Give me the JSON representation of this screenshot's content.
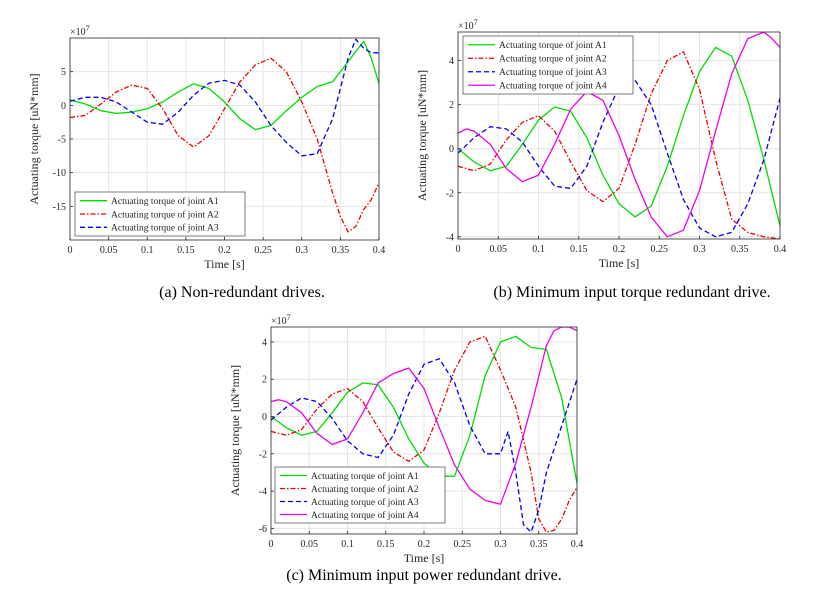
{
  "chart_data": [
    {
      "type": "line",
      "caption": "(a) Non-redundant drives.",
      "xlabel": "Time [s]",
      "ylabel": "Actuating torque [uN*mm]",
      "multiplier": "×10",
      "multiplier_exp": "7",
      "xlim": [
        0,
        0.4
      ],
      "ylim": [
        -20,
        10
      ],
      "xticks": [
        0,
        0.05,
        0.1,
        0.15,
        0.2,
        0.25,
        0.3,
        0.35,
        0.4
      ],
      "yticks": [
        -15,
        -10,
        -5,
        0,
        5
      ],
      "grid": true,
      "legend_position": "bottom-left",
      "series": [
        {
          "name": "Actuating torque of joint A1",
          "color": "#00dd00",
          "style": "solid",
          "x": [
            0,
            0.02,
            0.04,
            0.06,
            0.08,
            0.1,
            0.12,
            0.14,
            0.16,
            0.18,
            0.2,
            0.22,
            0.24,
            0.26,
            0.28,
            0.3,
            0.32,
            0.34,
            0.36,
            0.37,
            0.38,
            0.39,
            0.4
          ],
          "y": [
            0.8,
            0.2,
            -0.8,
            -1.2,
            -1.0,
            -0.5,
            0.5,
            2,
            3.2,
            2.5,
            0.5,
            -2,
            -3.6,
            -3,
            -0.8,
            1.2,
            2.8,
            3.5,
            6.5,
            8,
            9.5,
            7,
            3.2
          ]
        },
        {
          "name": "Actuating torque of joint A2",
          "color": "#ee0000",
          "style": "dashdot",
          "x": [
            0,
            0.02,
            0.04,
            0.06,
            0.08,
            0.1,
            0.12,
            0.14,
            0.16,
            0.18,
            0.2,
            0.22,
            0.24,
            0.26,
            0.28,
            0.3,
            0.32,
            0.34,
            0.35,
            0.36,
            0.37,
            0.38,
            0.39,
            0.4
          ],
          "y": [
            -1.8,
            -1.5,
            0.2,
            2,
            3,
            2.5,
            -0.5,
            -4.5,
            -6.2,
            -4.5,
            -0.5,
            3.5,
            6,
            7,
            5,
            0.5,
            -5,
            -13,
            -16.5,
            -18.8,
            -18,
            -15.5,
            -14,
            -11.5
          ]
        },
        {
          "name": "Actuating torque of joint A3",
          "color": "#0000ee",
          "style": "dash",
          "x": [
            0,
            0.02,
            0.04,
            0.06,
            0.08,
            0.1,
            0.12,
            0.14,
            0.16,
            0.18,
            0.2,
            0.22,
            0.24,
            0.26,
            0.28,
            0.3,
            0.32,
            0.34,
            0.36,
            0.37,
            0.38,
            0.39,
            0.4
          ],
          "y": [
            0.6,
            1.2,
            1.2,
            0.5,
            -1,
            -2.5,
            -2.8,
            -1,
            1.5,
            3.3,
            3.7,
            3,
            0.5,
            -3,
            -5.5,
            -7.5,
            -7.2,
            -2,
            7,
            9.8,
            8.5,
            7.8,
            7.8
          ]
        }
      ]
    },
    {
      "type": "line",
      "caption": "(b) Minimum input torque redundant drive.",
      "xlabel": "Time [s]",
      "ylabel": "Actuating torque [uN*mm]",
      "multiplier": "×10",
      "multiplier_exp": "7",
      "xlim": [
        0,
        0.4
      ],
      "ylim": [
        -4.1,
        5.3
      ],
      "xticks": [
        0,
        0.05,
        0.1,
        0.15,
        0.2,
        0.25,
        0.3,
        0.35,
        0.4
      ],
      "yticks": [
        -4,
        -2,
        0,
        2,
        4
      ],
      "grid": true,
      "legend_position": "top-left",
      "series": [
        {
          "name": "Actuating torque of joint A1",
          "color": "#00dd00",
          "style": "solid",
          "x": [
            0,
            0.02,
            0.04,
            0.06,
            0.08,
            0.1,
            0.12,
            0.14,
            0.16,
            0.18,
            0.2,
            0.22,
            0.24,
            0.26,
            0.28,
            0.3,
            0.32,
            0.34,
            0.36,
            0.38,
            0.4
          ],
          "y": [
            0,
            -0.6,
            -1,
            -0.8,
            0.2,
            1.3,
            1.9,
            1.7,
            0.5,
            -1.2,
            -2.5,
            -3.1,
            -2.6,
            -0.8,
            1.5,
            3.5,
            4.6,
            4.2,
            2.2,
            -0.5,
            -3.5
          ]
        },
        {
          "name": "Actuating torque of joint A2",
          "color": "#ee0000",
          "style": "dashdot",
          "x": [
            0,
            0.02,
            0.04,
            0.06,
            0.08,
            0.1,
            0.12,
            0.14,
            0.16,
            0.18,
            0.2,
            0.22,
            0.24,
            0.26,
            0.28,
            0.3,
            0.32,
            0.34,
            0.36,
            0.38,
            0.4
          ],
          "y": [
            -0.8,
            -1,
            -0.7,
            0.4,
            1.2,
            1.5,
            0.8,
            -0.6,
            -1.9,
            -2.4,
            -1.8,
            0.2,
            2.5,
            4,
            4.4,
            2.7,
            -0.5,
            -3.2,
            -3.8,
            -4,
            -4.1
          ]
        },
        {
          "name": "Actuating torque of joint A3",
          "color": "#0000ee",
          "style": "dash",
          "x": [
            0,
            0.02,
            0.04,
            0.06,
            0.08,
            0.1,
            0.12,
            0.14,
            0.16,
            0.18,
            0.2,
            0.22,
            0.24,
            0.26,
            0.28,
            0.3,
            0.32,
            0.34,
            0.36,
            0.38,
            0.4
          ],
          "y": [
            -0.2,
            0.5,
            1,
            0.9,
            0.3,
            -0.8,
            -1.7,
            -1.8,
            -0.8,
            1.2,
            2.8,
            3.1,
            2,
            -0.2,
            -2.3,
            -3.6,
            -4,
            -3.8,
            -2.5,
            -0.5,
            2.3
          ]
        },
        {
          "name": "Actuating torque of joint A4",
          "color": "#ee00ee",
          "style": "solid",
          "x": [
            0,
            0.01,
            0.02,
            0.04,
            0.06,
            0.08,
            0.1,
            0.12,
            0.14,
            0.16,
            0.18,
            0.2,
            0.22,
            0.24,
            0.26,
            0.28,
            0.3,
            0.32,
            0.34,
            0.36,
            0.38,
            0.39,
            0.4
          ],
          "y": [
            0.7,
            0.9,
            0.8,
            0.2,
            -0.9,
            -1.5,
            -1.2,
            0.2,
            1.8,
            2.6,
            2.2,
            0.6,
            -1.4,
            -3.1,
            -4,
            -3.7,
            -1.9,
            0.8,
            3.4,
            5,
            5.3,
            5,
            4.6
          ]
        }
      ]
    },
    {
      "type": "line",
      "caption": "(c) Minimum input power redundant drive.",
      "xlabel": "Time [s]",
      "ylabel": "Actuating torque [uN*mm]",
      "multiplier": "×10",
      "multiplier_exp": "7",
      "xlim": [
        0,
        0.4
      ],
      "ylim": [
        -6.3,
        4.8
      ],
      "xticks": [
        0,
        0.05,
        0.1,
        0.15,
        0.2,
        0.25,
        0.3,
        0.35,
        0.4
      ],
      "yticks": [
        -6,
        -4,
        -2,
        0,
        2,
        4
      ],
      "grid": true,
      "legend_position": "bottom-left",
      "series": [
        {
          "name": "Actuating torque of joint A1",
          "color": "#00dd00",
          "style": "solid",
          "x": [
            0,
            0.02,
            0.04,
            0.06,
            0.08,
            0.1,
            0.12,
            0.14,
            0.16,
            0.18,
            0.2,
            0.22,
            0.24,
            0.26,
            0.28,
            0.3,
            0.32,
            0.34,
            0.36,
            0.38,
            0.4
          ],
          "y": [
            0,
            -0.6,
            -1,
            -0.8,
            0.2,
            1.3,
            1.8,
            1.7,
            0.5,
            -1.2,
            -2.5,
            -3.2,
            -3.2,
            -1,
            2.2,
            4,
            4.3,
            3.7,
            3.6,
            1,
            -3.6
          ]
        },
        {
          "name": "Actuating torque of joint A2",
          "color": "#ee0000",
          "style": "dashdot",
          "x": [
            0,
            0.02,
            0.04,
            0.06,
            0.08,
            0.1,
            0.12,
            0.14,
            0.16,
            0.18,
            0.2,
            0.22,
            0.24,
            0.26,
            0.28,
            0.3,
            0.32,
            0.34,
            0.35,
            0.36,
            0.37,
            0.38,
            0.39,
            0.4
          ],
          "y": [
            -0.8,
            -1,
            -0.7,
            0.4,
            1.2,
            1.5,
            0.8,
            -0.6,
            -1.9,
            -2.4,
            -1.8,
            0.2,
            2.5,
            4,
            4.3,
            2.5,
            0.5,
            -3,
            -5.5,
            -6.2,
            -6.1,
            -5.5,
            -4.5,
            -3.8
          ]
        },
        {
          "name": "Actuating torque of joint A3",
          "color": "#0000ee",
          "style": "dash",
          "x": [
            0,
            0.02,
            0.04,
            0.06,
            0.08,
            0.1,
            0.12,
            0.14,
            0.16,
            0.18,
            0.2,
            0.22,
            0.24,
            0.26,
            0.28,
            0.3,
            0.31,
            0.32,
            0.33,
            0.34,
            0.35,
            0.36,
            0.38,
            0.4
          ],
          "y": [
            -0.2,
            0.5,
            1,
            0.8,
            -0.1,
            -1.3,
            -2,
            -2.2,
            -1,
            1.2,
            2.8,
            3.1,
            1.8,
            -0.5,
            -2,
            -2,
            -0.8,
            -3,
            -5.8,
            -6.2,
            -5,
            -3,
            -0.5,
            2
          ]
        },
        {
          "name": "Actuating torque of joint A4",
          "color": "#ee00ee",
          "style": "solid",
          "x": [
            0,
            0.01,
            0.02,
            0.04,
            0.06,
            0.08,
            0.1,
            0.12,
            0.14,
            0.16,
            0.18,
            0.2,
            0.22,
            0.24,
            0.26,
            0.28,
            0.3,
            0.32,
            0.34,
            0.36,
            0.37,
            0.38,
            0.39,
            0.4
          ],
          "y": [
            0.8,
            0.9,
            0.8,
            0.2,
            -0.9,
            -1.5,
            -1.2,
            0.2,
            1.8,
            2.3,
            2.6,
            1.5,
            -0.6,
            -2.6,
            -3.9,
            -4.5,
            -4.7,
            -2.5,
            0.5,
            3.8,
            4.6,
            4.8,
            4.8,
            4.6
          ]
        }
      ]
    }
  ]
}
